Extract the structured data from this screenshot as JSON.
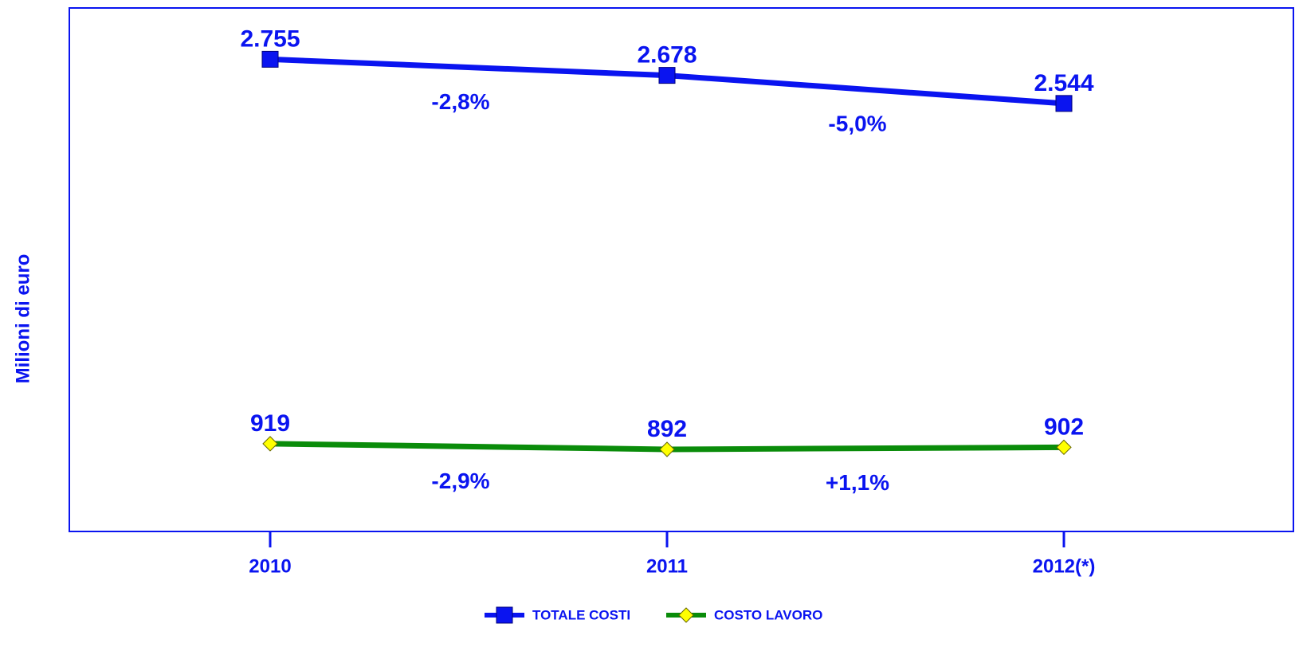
{
  "chart_data": {
    "type": "line",
    "ylabel": "Milioni di euro",
    "categories": [
      "2010",
      "2011",
      "2012(*)"
    ],
    "ylim": [
      500,
      3000
    ],
    "series": [
      {
        "name": "TOTALE COSTI",
        "color": "#0a14f0",
        "marker": "square",
        "marker_color": "#0a14f0",
        "values": [
          2755,
          2678,
          2544
        ],
        "value_labels": [
          "2.755",
          "2.678",
          "2.544"
        ],
        "changes": [
          "-2,8%",
          "-5,0%"
        ]
      },
      {
        "name": "COSTO LAVORO",
        "color": "#0a8c0a",
        "marker": "diamond",
        "marker_color": "#ffff00",
        "values": [
          919,
          892,
          902
        ],
        "value_labels": [
          "919",
          "892",
          "902"
        ],
        "changes": [
          "-2,9%",
          "+1,1%"
        ]
      }
    ]
  }
}
